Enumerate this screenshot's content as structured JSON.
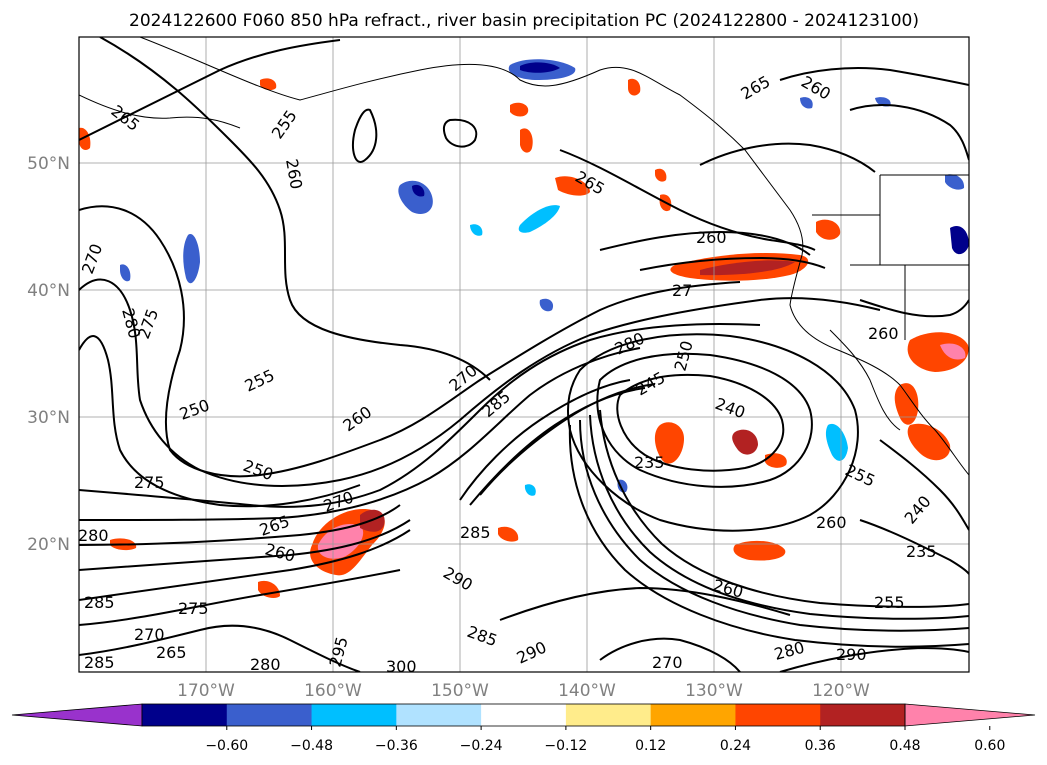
{
  "title": "2024122600 F060 850 hPa refract., river basin precipitation PC (2024122800 - 2024123100)",
  "map": {
    "lat_labels": [
      "50°N",
      "40°N",
      "30°N",
      "20°N"
    ],
    "lon_labels": [
      "170°W",
      "160°W",
      "150°W",
      "140°W",
      "130°W",
      "120°W"
    ],
    "contour_labels": [
      {
        "text": "265"
      },
      {
        "text": "255"
      },
      {
        "text": "260"
      },
      {
        "text": "270"
      },
      {
        "text": "280"
      },
      {
        "text": "275"
      },
      {
        "text": "265"
      },
      {
        "text": "260"
      },
      {
        "text": "265"
      },
      {
        "text": "260"
      },
      {
        "text": "27"
      },
      {
        "text": "260"
      },
      {
        "text": "270"
      },
      {
        "text": "285"
      },
      {
        "text": "280"
      },
      {
        "text": "250"
      },
      {
        "text": "245"
      },
      {
        "text": "240"
      },
      {
        "text": "235"
      },
      {
        "text": "255"
      },
      {
        "text": "250"
      },
      {
        "text": "260"
      },
      {
        "text": "250"
      },
      {
        "text": "275"
      },
      {
        "text": "270"
      },
      {
        "text": "265"
      },
      {
        "text": "260"
      },
      {
        "text": "280"
      },
      {
        "text": "285"
      },
      {
        "text": "290"
      },
      {
        "text": "255"
      },
      {
        "text": "260"
      },
      {
        "text": "260"
      },
      {
        "text": "235"
      },
      {
        "text": "255"
      },
      {
        "text": "240"
      },
      {
        "text": "285"
      },
      {
        "text": "275"
      },
      {
        "text": "270"
      },
      {
        "text": "265"
      },
      {
        "text": "280"
      },
      {
        "text": "285"
      },
      {
        "text": "290"
      },
      {
        "text": "280"
      },
      {
        "text": "270"
      },
      {
        "text": "285"
      },
      {
        "text": "290"
      },
      {
        "text": "295"
      },
      {
        "text": "300"
      }
    ]
  },
  "colorbar": {
    "labels": [
      "−0.60",
      "−0.48",
      "−0.36",
      "−0.24",
      "−0.12",
      "0.12",
      "0.24",
      "0.36",
      "0.48",
      "0.60"
    ],
    "colors": [
      "#9932cc",
      "#00008b",
      "#3a5fcd",
      "#00bfff",
      "#b0e2ff",
      "#ffffff",
      "#ffec8b",
      "#ffa500",
      "#ff4500",
      "#b22222",
      "#ff82ab"
    ]
  }
}
